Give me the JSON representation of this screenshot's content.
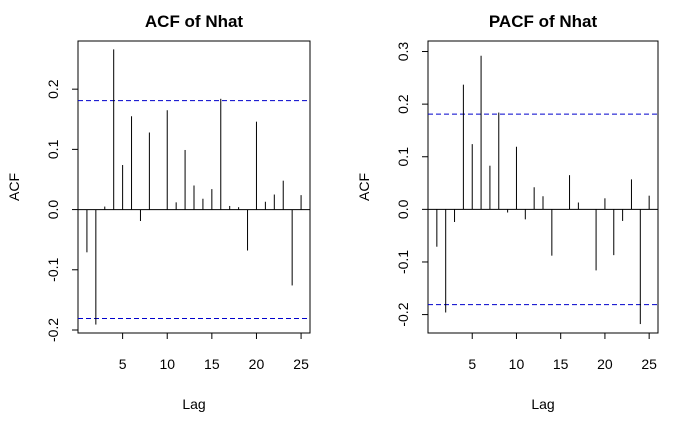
{
  "chart_data": [
    {
      "type": "bar",
      "title": "ACF of Nhat",
      "xlabel": "Lag",
      "ylabel": "ACF",
      "xlim": [
        0,
        26
      ],
      "ylim": [
        -0.205,
        0.28
      ],
      "xticks": [
        5,
        10,
        15,
        20,
        25
      ],
      "yticks": [
        -0.2,
        -0.1,
        0.0,
        0.1,
        0.2
      ],
      "ytick_labels": [
        "-0.2",
        "-0.1",
        "0.0",
        "0.1",
        "0.2"
      ],
      "x": [
        1,
        2,
        3,
        4,
        5,
        6,
        7,
        8,
        9,
        10,
        11,
        12,
        13,
        14,
        15,
        16,
        17,
        18,
        19,
        20,
        21,
        22,
        23,
        24,
        25
      ],
      "values": [
        -0.071,
        -0.191,
        0.005,
        0.266,
        0.074,
        0.155,
        -0.019,
        0.128,
        0.0,
        0.165,
        0.012,
        0.099,
        0.04,
        0.018,
        0.034,
        0.184,
        0.006,
        0.004,
        -0.068,
        0.146,
        0.013,
        0.025,
        0.048,
        -0.126,
        0.024
      ],
      "conf_limit": 0.181,
      "conf_color": "#0000cc"
    },
    {
      "type": "bar",
      "title": "PACF of Nhat",
      "xlabel": "Lag",
      "ylabel": "ACF",
      "xlim": [
        0,
        26
      ],
      "ylim": [
        -0.235,
        0.32
      ],
      "xticks": [
        5,
        10,
        15,
        20,
        25
      ],
      "yticks": [
        -0.2,
        -0.1,
        0.0,
        0.1,
        0.2,
        0.3
      ],
      "ytick_labels": [
        "-0.2",
        "-0.1",
        "0.0",
        "0.1",
        "0.2",
        "0.3"
      ],
      "x": [
        1,
        2,
        3,
        4,
        5,
        6,
        7,
        8,
        9,
        10,
        11,
        12,
        13,
        14,
        15,
        16,
        17,
        18,
        19,
        20,
        21,
        22,
        23,
        24,
        25
      ],
      "values": [
        -0.071,
        -0.196,
        -0.024,
        0.237,
        0.124,
        0.292,
        0.083,
        0.184,
        -0.006,
        0.119,
        -0.019,
        0.042,
        0.025,
        -0.088,
        0.0,
        0.065,
        0.013,
        0.0,
        -0.116,
        0.021,
        -0.087,
        -0.022,
        0.057,
        -0.218,
        0.026
      ],
      "conf_limit": 0.181,
      "conf_color": "#0000cc"
    }
  ]
}
